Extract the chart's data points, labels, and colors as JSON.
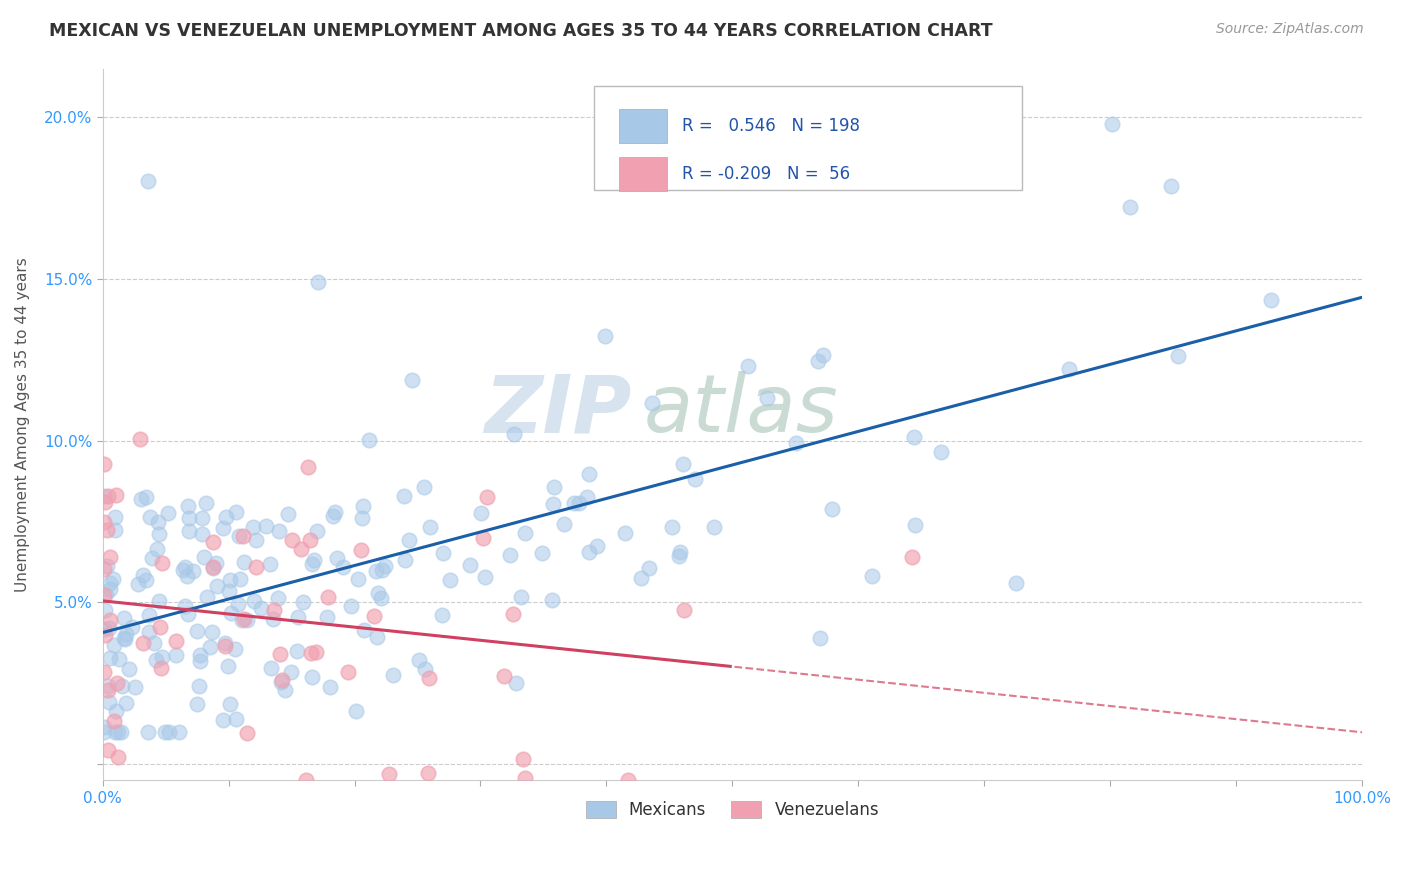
{
  "title": "MEXICAN VS VENEZUELAN UNEMPLOYMENT AMONG AGES 35 TO 44 YEARS CORRELATION CHART",
  "source": "Source: ZipAtlas.com",
  "ylabel": "Unemployment Among Ages 35 to 44 years",
  "xlim": [
    0,
    1.0
  ],
  "ylim": [
    -0.005,
    0.215
  ],
  "xticks": [
    0.0,
    0.1,
    0.2,
    0.3,
    0.4,
    0.5,
    0.6,
    0.7,
    0.8,
    0.9,
    1.0
  ],
  "yticks": [
    0.0,
    0.05,
    0.1,
    0.15,
    0.2
  ],
  "yticklabels": [
    "",
    "5.0%",
    "10.0%",
    "15.0%",
    "20.0%"
  ],
  "mexican_R": 0.546,
  "mexican_N": 198,
  "venezuelan_R": -0.209,
  "venezuelan_N": 56,
  "blue_scatter_color": "#a8c8e8",
  "blue_line_color": "#1a5fa8",
  "pink_scatter_color": "#f0a0b0",
  "pink_line_color": "#d04060",
  "legend_label1": "Mexicans",
  "legend_label2": "Venezuelans",
  "watermark_zip": "ZIP",
  "watermark_atlas": "atlas",
  "background_color": "#ffffff",
  "grid_color": "#cccccc",
  "tick_color": "#3399ff",
  "legend_box_color": "#dddddd"
}
